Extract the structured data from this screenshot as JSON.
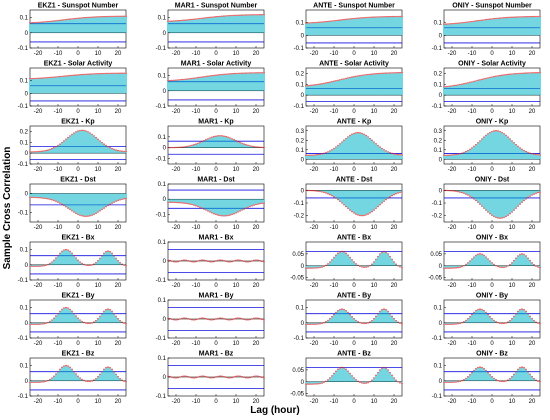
{
  "figure": {
    "ylabel": "Sample Cross Correlation",
    "xlabel": "Lag (hour)"
  },
  "chart_data": {
    "type": "bar",
    "xlabel": "Lag (hour)",
    "ylabel": "Sample Cross Correlation",
    "lag_range": [
      -24,
      24
    ],
    "x_ticks": [
      -20,
      -10,
      0,
      10,
      20
    ],
    "stations": [
      "EKZ1",
      "MAR1",
      "ANTE",
      "ONIY"
    ],
    "parameters": [
      "Sunspot Number",
      "Solar Activity",
      "Kp",
      "Dst",
      "Bx",
      "By",
      "Bz"
    ],
    "colors": {
      "bar": "#00b4c8",
      "tip": "#e02020",
      "bound": "#1010e0",
      "zero": "#000000"
    },
    "panels": [
      {
        "title": "EKZ1 - Sunspot Number",
        "ylim": [
          -0.1,
          0.15
        ],
        "yticks": [
          "0.1",
          "0",
          "-0.1"
        ],
        "ytick_values": [
          0.1,
          0,
          -0.1
        ],
        "bound": 0.06,
        "shape": "ramp",
        "v0": 0.06,
        "v1": 0.11,
        "extra": 0
      },
      {
        "title": "MAR1 - Sunspot Number",
        "ylim": [
          -0.1,
          0.15
        ],
        "yticks": [
          "0.1",
          "0",
          "-0.1"
        ],
        "ytick_values": [
          0.1,
          0,
          -0.1
        ],
        "bound": 0.06,
        "shape": "ramp",
        "v0": 0.07,
        "v1": 0.12,
        "extra": 0
      },
      {
        "title": "ANTE - Sunspot Number",
        "ylim": [
          -0.1,
          0.2
        ],
        "yticks": [
          "0.1",
          "0",
          "-0.1"
        ],
        "ytick_values": [
          0.1,
          0,
          -0.1
        ],
        "bound": 0.06,
        "shape": "ramp",
        "v0": 0.09,
        "v1": 0.15,
        "extra": 0
      },
      {
        "title": "ONIY - Sunspot Number",
        "ylim": [
          -0.1,
          0.2
        ],
        "yticks": [
          "0.1",
          "0",
          "-0.1"
        ],
        "ytick_values": [
          0.1,
          0,
          -0.1
        ],
        "bound": 0.06,
        "shape": "ramp",
        "v0": 0.08,
        "v1": 0.15,
        "extra": 0
      },
      {
        "title": "EKZ1 - Solar Activity",
        "ylim": [
          -0.1,
          0.2
        ],
        "yticks": [
          "0.1",
          "0",
          "-0.1"
        ],
        "ytick_values": [
          0.1,
          0,
          -0.1
        ],
        "bound": 0.06,
        "shape": "ramp",
        "v0": 0.11,
        "v1": 0.16,
        "extra": 0
      },
      {
        "title": "MAR1 - Solar Activity",
        "ylim": [
          -0.1,
          0.15
        ],
        "yticks": [
          "0.1",
          "0",
          "-0.1"
        ],
        "ytick_values": [
          0.1,
          0,
          -0.1
        ],
        "bound": 0.06,
        "shape": "ramp",
        "v0": 0.06,
        "v1": 0.12,
        "extra": 0
      },
      {
        "title": "ANTE - Solar Activity",
        "ylim": [
          -0.1,
          0.25
        ],
        "yticks": [
          "0.2",
          "0.1",
          "0",
          "-0.1"
        ],
        "ytick_values": [
          0.2,
          0.1,
          0,
          -0.1
        ],
        "bound": 0.06,
        "shape": "ramp",
        "v0": 0.07,
        "v1": 0.21,
        "extra": 0
      },
      {
        "title": "ONIY - Solar Activity",
        "ylim": [
          -0.1,
          0.25
        ],
        "yticks": [
          "0.2",
          "0.1",
          "0",
          "-0.1"
        ],
        "ytick_values": [
          0.2,
          0.1,
          0,
          -0.1
        ],
        "bound": 0.06,
        "shape": "ramp",
        "v0": 0.06,
        "v1": 0.21,
        "extra": 0
      },
      {
        "title": "EKZ1 - Kp",
        "ylim": [
          -0.1,
          0.25
        ],
        "yticks": [
          "0.2",
          "0.1",
          "0",
          "-0.1"
        ],
        "ytick_values": [
          0.2,
          0.1,
          0,
          -0.1
        ],
        "bound": 0.06,
        "shape": "hump",
        "v0": 0.01,
        "v1": 0.21,
        "extra": 0
      },
      {
        "title": "MAR1 - Kp",
        "ylim": [
          -0.15,
          0.2
        ],
        "yticks": [
          "0.1",
          "0",
          "-0.1"
        ],
        "ytick_values": [
          0.1,
          0,
          -0.1
        ],
        "bound": 0.06,
        "shape": "hump",
        "v0": 0.0,
        "v1": 0.11,
        "extra": 0
      },
      {
        "title": "ANTE - Kp",
        "ylim": [
          -0.05,
          0.35
        ],
        "yticks": [
          "0.3",
          "0.2",
          "0.1",
          "0"
        ],
        "ytick_values": [
          0.3,
          0.2,
          0.1,
          0
        ],
        "bound": 0.06,
        "shape": "hump",
        "v0": 0.04,
        "v1": 0.28,
        "extra": 0
      },
      {
        "title": "ONIY - Kp",
        "ylim": [
          -0.05,
          0.35
        ],
        "yticks": [
          "0.3",
          "0.2",
          "0.1",
          "0"
        ],
        "ytick_values": [
          0.3,
          0.2,
          0.1,
          0
        ],
        "bound": 0.06,
        "shape": "hump",
        "v0": 0.04,
        "v1": 0.3,
        "extra": 0
      },
      {
        "title": "EKZ1 - Dst",
        "ylim": [
          -0.15,
          0.05
        ],
        "yticks": [
          "0",
          "-0.1"
        ],
        "ytick_values": [
          0,
          -0.1
        ],
        "bound": 0.06,
        "shape": "dip",
        "v0": -0.02,
        "v1": -0.12,
        "extra": 0
      },
      {
        "title": "MAR1 - Dst",
        "ylim": [
          -0.15,
          0.1
        ],
        "yticks": [
          "0.1",
          "0",
          "-0.1"
        ],
        "ytick_values": [
          0.1,
          0,
          -0.1
        ],
        "bound": 0.06,
        "shape": "dip",
        "v0": -0.02,
        "v1": -0.11,
        "extra": 0
      },
      {
        "title": "ANTE - Dst",
        "ylim": [
          -0.25,
          0.05
        ],
        "yticks": [
          "0",
          "-0.1",
          "-0.2"
        ],
        "ytick_values": [
          0,
          -0.1,
          -0.2
        ],
        "bound": 0.06,
        "shape": "dip",
        "v0": 0.0,
        "v1": -0.2,
        "extra": 0
      },
      {
        "title": "ONIY - Dst",
        "ylim": [
          -0.25,
          0.05
        ],
        "yticks": [
          "0",
          "-0.1",
          "-0.2"
        ],
        "ytick_values": [
          0,
          -0.1,
          -0.2
        ],
        "bound": 0.06,
        "shape": "dip",
        "v0": 0.0,
        "v1": -0.22,
        "extra": 0
      },
      {
        "title": "EKZ1 - Bx",
        "ylim": [
          -0.1,
          0.15
        ],
        "yticks": [
          "0.1",
          "0",
          "-0.1"
        ],
        "ytick_values": [
          0.1,
          0,
          -0.1
        ],
        "bound": 0.06,
        "shape": "wave",
        "v0": 0.0,
        "v1": 0.11,
        "extra": 0.1
      },
      {
        "title": "MAR1 - Bx",
        "ylim": [
          -0.1,
          0.1
        ],
        "yticks": [
          "0.1",
          "0",
          "-0.1"
        ],
        "ytick_values": [
          0.1,
          0,
          -0.1
        ],
        "bound": 0.06,
        "shape": "flat",
        "v0": 0.0,
        "v1": 0.0,
        "extra": 0
      },
      {
        "title": "ANTE - Bx",
        "ylim": [
          -0.06,
          0.1
        ],
        "yticks": [
          "0.05",
          "0",
          "-0.05"
        ],
        "ytick_values": [
          0.05,
          0,
          -0.05
        ],
        "bound": 0.06,
        "shape": "wave",
        "v0": 0.0,
        "v1": 0.07,
        "extra": 0.07
      },
      {
        "title": "ONIY - Bx",
        "ylim": [
          -0.06,
          0.1
        ],
        "yticks": [
          "0.05",
          "0",
          "-0.05"
        ],
        "ytick_values": [
          0.05,
          0,
          -0.05
        ],
        "bound": 0.06,
        "shape": "wave",
        "v0": 0.0,
        "v1": 0.06,
        "extra": 0.06
      },
      {
        "title": "EKZ1 - By",
        "ylim": [
          -0.1,
          0.15
        ],
        "yticks": [
          "0.1",
          "0",
          "-0.1"
        ],
        "ytick_values": [
          0.1,
          0,
          -0.1
        ],
        "bound": 0.06,
        "shape": "wave",
        "v0": 0.0,
        "v1": 0.11,
        "extra": 0.1
      },
      {
        "title": "MAR1 - By",
        "ylim": [
          -0.1,
          0.1
        ],
        "yticks": [
          "0.1",
          "0",
          "-0.1"
        ],
        "ytick_values": [
          0.1,
          0,
          -0.1
        ],
        "bound": 0.06,
        "shape": "flat",
        "v0": 0.0,
        "v1": 0.0,
        "extra": 0
      },
      {
        "title": "ANTE - By",
        "ylim": [
          -0.1,
          0.15
        ],
        "yticks": [
          "0.1",
          "0",
          "-0.1"
        ],
        "ytick_values": [
          0.1,
          0,
          -0.1
        ],
        "bound": 0.06,
        "shape": "wave",
        "v0": 0.0,
        "v1": 0.1,
        "extra": 0.1
      },
      {
        "title": "ONIY - By",
        "ylim": [
          -0.1,
          0.15
        ],
        "yticks": [
          "0.1",
          "0",
          "-0.1"
        ],
        "ytick_values": [
          0.1,
          0,
          -0.1
        ],
        "bound": 0.06,
        "shape": "wave",
        "v0": 0.0,
        "v1": 0.1,
        "extra": 0.1
      },
      {
        "title": "EKZ1 - Bz",
        "ylim": [
          -0.1,
          0.15
        ],
        "yticks": [
          "0.1",
          "0",
          "-0.1"
        ],
        "ytick_values": [
          0.1,
          0,
          -0.1
        ],
        "bound": 0.06,
        "shape": "wave",
        "v0": 0.0,
        "v1": 0.11,
        "extra": 0.1
      },
      {
        "title": "MAR1 - Bz",
        "ylim": [
          -0.1,
          0.1
        ],
        "yticks": [
          "0.1",
          "0",
          "-0.1"
        ],
        "ytick_values": [
          0.1,
          0,
          -0.1
        ],
        "bound": 0.06,
        "shape": "flat",
        "v0": 0.0,
        "v1": 0.0,
        "extra": 0
      },
      {
        "title": "ANTE - Bz",
        "ylim": [
          -0.06,
          0.1
        ],
        "yticks": [
          "0.05",
          "0",
          "-0.05"
        ],
        "ytick_values": [
          0.05,
          0,
          -0.05
        ],
        "bound": 0.06,
        "shape": "wave",
        "v0": 0.0,
        "v1": 0.07,
        "extra": 0.07
      },
      {
        "title": "ONIY - Bz",
        "ylim": [
          -0.1,
          0.15
        ],
        "yticks": [
          "0.1",
          "0",
          "-0.1"
        ],
        "ytick_values": [
          0.1,
          0,
          -0.1
        ],
        "bound": 0.06,
        "shape": "wave",
        "v0": 0.0,
        "v1": 0.1,
        "extra": 0.1
      }
    ]
  }
}
